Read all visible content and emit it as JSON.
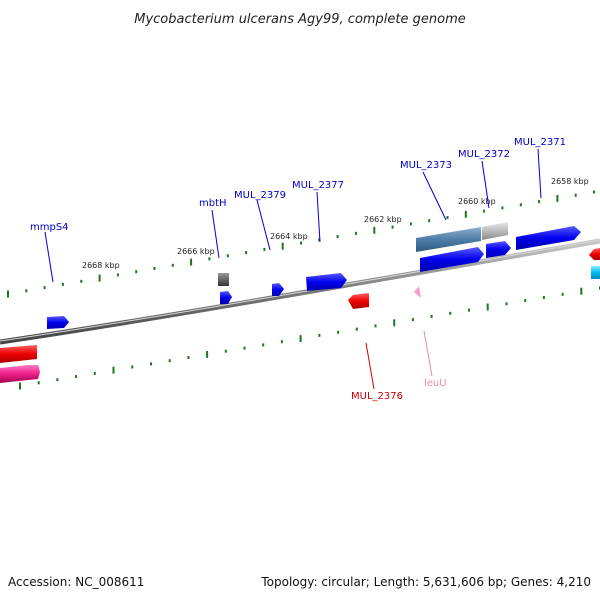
{
  "header": {
    "title": "Mycobacterium ulcerans Agy99, complete genome"
  },
  "footer": {
    "accession": "Accession: NC_008611",
    "summary": "Topology: circular; Length: 5,631,606 bp; Genes: 4,210"
  },
  "ruler": {
    "ticks": [
      "2668 kbp",
      "2666 kbp",
      "2664 kbp",
      "2662 kbp",
      "2660 kbp",
      "2658 kbp"
    ]
  },
  "genes": [
    {
      "name": "mmpS4",
      "strand": "+",
      "color": "#0000cc"
    },
    {
      "name": "mbtH",
      "strand": "+",
      "color": "#0000cc"
    },
    {
      "name": "MUL_2379",
      "strand": "+",
      "color": "#0000cc"
    },
    {
      "name": "MUL_2377",
      "strand": "+",
      "color": "#0000cc"
    },
    {
      "name": "MUL_2373",
      "strand": "+",
      "color": "#0000cc"
    },
    {
      "name": "MUL_2372",
      "strand": "+",
      "color": "#0000cc"
    },
    {
      "name": "MUL_2371",
      "strand": "+",
      "color": "#0000cc"
    },
    {
      "name": "MUL_2376",
      "strand": "-",
      "color": "#cc0000"
    },
    {
      "name": "leuU",
      "strand": "-",
      "color": "#ee88aa"
    }
  ],
  "colors": {
    "forward_gene": "#0000ff",
    "reverse_gene": "#ee0000",
    "trna": "#ff99cc",
    "backbone": "#777777",
    "tick": "#1a7a1a"
  }
}
